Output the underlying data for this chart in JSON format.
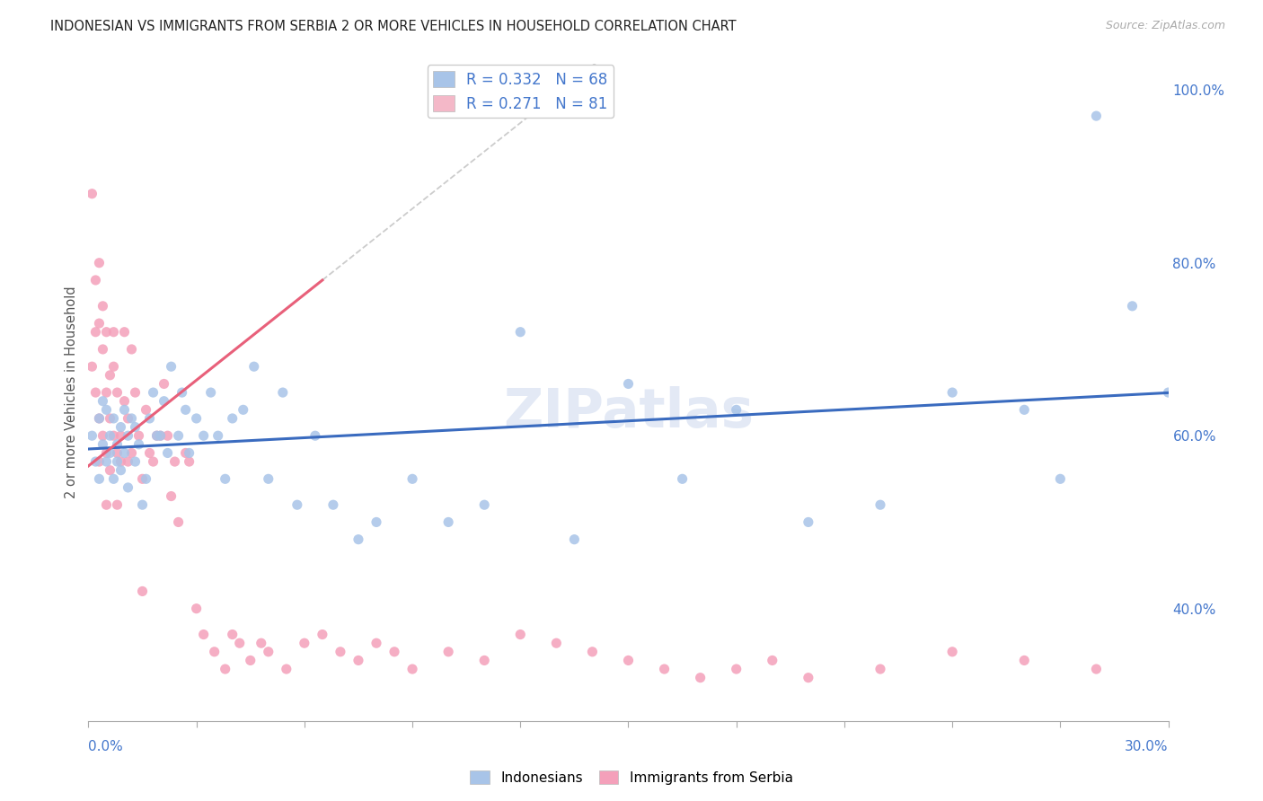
{
  "title": "INDONESIAN VS IMMIGRANTS FROM SERBIA 2 OR MORE VEHICLES IN HOUSEHOLD CORRELATION CHART",
  "source": "Source: ZipAtlas.com",
  "ylabel": "2 or more Vehicles in Household",
  "xmin": 0.0,
  "xmax": 0.3,
  "ymin": 0.27,
  "ymax": 1.03,
  "yticks": [
    0.4,
    0.6,
    0.8,
    1.0
  ],
  "ytick_labels": [
    "40.0%",
    "60.0%",
    "80.0%",
    "100.0%"
  ],
  "R_blue": 0.332,
  "N_blue": 68,
  "R_pink": 0.271,
  "N_pink": 81,
  "blue_scatter_color": "#a8c4e8",
  "pink_scatter_color": "#f4a0ba",
  "blue_trend_color": "#3a6bbf",
  "pink_trend_color": "#e8607a",
  "legend_blue_patch": "#a8c4e8",
  "legend_pink_patch": "#f4b8c8",
  "watermark": "ZIPatlas",
  "indonesians_x": [
    0.001,
    0.002,
    0.003,
    0.003,
    0.004,
    0.004,
    0.005,
    0.005,
    0.006,
    0.006,
    0.007,
    0.007,
    0.008,
    0.008,
    0.009,
    0.009,
    0.01,
    0.01,
    0.011,
    0.011,
    0.012,
    0.013,
    0.013,
    0.014,
    0.015,
    0.016,
    0.017,
    0.018,
    0.019,
    0.02,
    0.021,
    0.022,
    0.023,
    0.025,
    0.026,
    0.027,
    0.028,
    0.03,
    0.032,
    0.034,
    0.036,
    0.038,
    0.04,
    0.043,
    0.046,
    0.05,
    0.054,
    0.058,
    0.063,
    0.068,
    0.075,
    0.08,
    0.09,
    0.1,
    0.11,
    0.12,
    0.135,
    0.15,
    0.165,
    0.18,
    0.2,
    0.22,
    0.24,
    0.26,
    0.27,
    0.28,
    0.29,
    0.3
  ],
  "indonesians_y": [
    0.6,
    0.57,
    0.62,
    0.55,
    0.59,
    0.64,
    0.57,
    0.63,
    0.6,
    0.58,
    0.62,
    0.55,
    0.59,
    0.57,
    0.61,
    0.56,
    0.63,
    0.58,
    0.6,
    0.54,
    0.62,
    0.57,
    0.61,
    0.59,
    0.52,
    0.55,
    0.62,
    0.65,
    0.6,
    0.6,
    0.64,
    0.58,
    0.68,
    0.6,
    0.65,
    0.63,
    0.58,
    0.62,
    0.6,
    0.65,
    0.6,
    0.55,
    0.62,
    0.63,
    0.68,
    0.55,
    0.65,
    0.52,
    0.6,
    0.52,
    0.48,
    0.5,
    0.55,
    0.5,
    0.52,
    0.72,
    0.48,
    0.66,
    0.55,
    0.63,
    0.5,
    0.52,
    0.65,
    0.63,
    0.55,
    0.97,
    0.75,
    0.65
  ],
  "serbia_x": [
    0.001,
    0.001,
    0.002,
    0.002,
    0.002,
    0.003,
    0.003,
    0.003,
    0.003,
    0.004,
    0.004,
    0.004,
    0.005,
    0.005,
    0.005,
    0.005,
    0.006,
    0.006,
    0.006,
    0.007,
    0.007,
    0.007,
    0.008,
    0.008,
    0.008,
    0.009,
    0.009,
    0.01,
    0.01,
    0.011,
    0.011,
    0.012,
    0.012,
    0.013,
    0.014,
    0.015,
    0.015,
    0.016,
    0.017,
    0.018,
    0.019,
    0.02,
    0.021,
    0.022,
    0.023,
    0.024,
    0.025,
    0.027,
    0.028,
    0.03,
    0.032,
    0.035,
    0.038,
    0.04,
    0.042,
    0.045,
    0.048,
    0.05,
    0.055,
    0.06,
    0.065,
    0.07,
    0.075,
    0.08,
    0.085,
    0.09,
    0.1,
    0.11,
    0.12,
    0.13,
    0.14,
    0.15,
    0.16,
    0.17,
    0.18,
    0.19,
    0.2,
    0.22,
    0.24,
    0.26,
    0.28
  ],
  "serbia_y": [
    0.88,
    0.68,
    0.78,
    0.72,
    0.65,
    0.73,
    0.8,
    0.62,
    0.57,
    0.7,
    0.75,
    0.6,
    0.65,
    0.72,
    0.58,
    0.52,
    0.67,
    0.62,
    0.56,
    0.72,
    0.68,
    0.6,
    0.65,
    0.58,
    0.52,
    0.6,
    0.57,
    0.64,
    0.72,
    0.62,
    0.57,
    0.7,
    0.58,
    0.65,
    0.6,
    0.55,
    0.42,
    0.63,
    0.58,
    0.57,
    0.6,
    0.6,
    0.66,
    0.6,
    0.53,
    0.57,
    0.5,
    0.58,
    0.57,
    0.4,
    0.37,
    0.35,
    0.33,
    0.37,
    0.36,
    0.34,
    0.36,
    0.35,
    0.33,
    0.36,
    0.37,
    0.35,
    0.34,
    0.36,
    0.35,
    0.33,
    0.35,
    0.34,
    0.37,
    0.36,
    0.35,
    0.34,
    0.33,
    0.32,
    0.33,
    0.34,
    0.32,
    0.33,
    0.35,
    0.34,
    0.33
  ]
}
